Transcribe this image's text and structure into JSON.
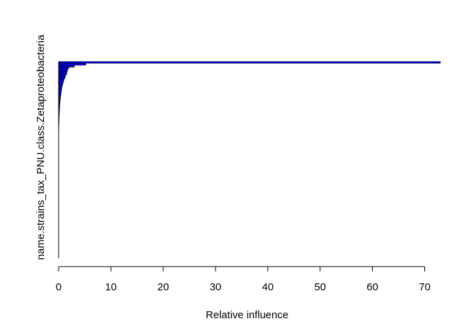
{
  "chart_data": {
    "type": "bar",
    "orientation": "horizontal",
    "title": "",
    "xlabel": "Relative influence",
    "ylabel": "",
    "ytick_label": "name.strains_tax_PNU.class.Zetaproteobacteria",
    "xlim": [
      0,
      73
    ],
    "xticks": [
      0,
      10,
      20,
      30,
      40,
      50,
      60,
      70
    ],
    "bar_color": "#0000ff",
    "bar_edge_color": "#000000",
    "grid": false,
    "legend": "none",
    "values": [
      73.0,
      5.2,
      3.0,
      1.9,
      1.7,
      1.6,
      1.5,
      1.3,
      1.2,
      1.0,
      0.9,
      0.8,
      0.7,
      0.6,
      0.55,
      0.5,
      0.45,
      0.4,
      0.35,
      0.3,
      0.28,
      0.25,
      0.22,
      0.2,
      0.18,
      0.16,
      0.14,
      0.12,
      0.1,
      0.09,
      0.08,
      0.07,
      0.06,
      0.05,
      0.04,
      0.03,
      0.025,
      0.02,
      0.015,
      0.01,
      0.008,
      0.006,
      0.005,
      0.004,
      0.003,
      0.002,
      0.001,
      0.0008,
      0.0006,
      0.0004,
      0.0002,
      0.0,
      0.0,
      0.0,
      0.0,
      0.0,
      0.0,
      0.0,
      0.0,
      0.0,
      0.0,
      0.0,
      0.0,
      0.0,
      0.0,
      0.0,
      0.0,
      0.0,
      0.0,
      0.0,
      0.0,
      0.0,
      0.0,
      0.0,
      0.0,
      0.0,
      0.0,
      0.0,
      0.0,
      0.0,
      0.0,
      0.0,
      0.0,
      0.0,
      0.0,
      0.0,
      0.0,
      0.0,
      0.0,
      0.0,
      0.0,
      0.0,
      0.0,
      0.0,
      0.0,
      0.0,
      0.0,
      0.0,
      0.0,
      0.0
    ]
  }
}
